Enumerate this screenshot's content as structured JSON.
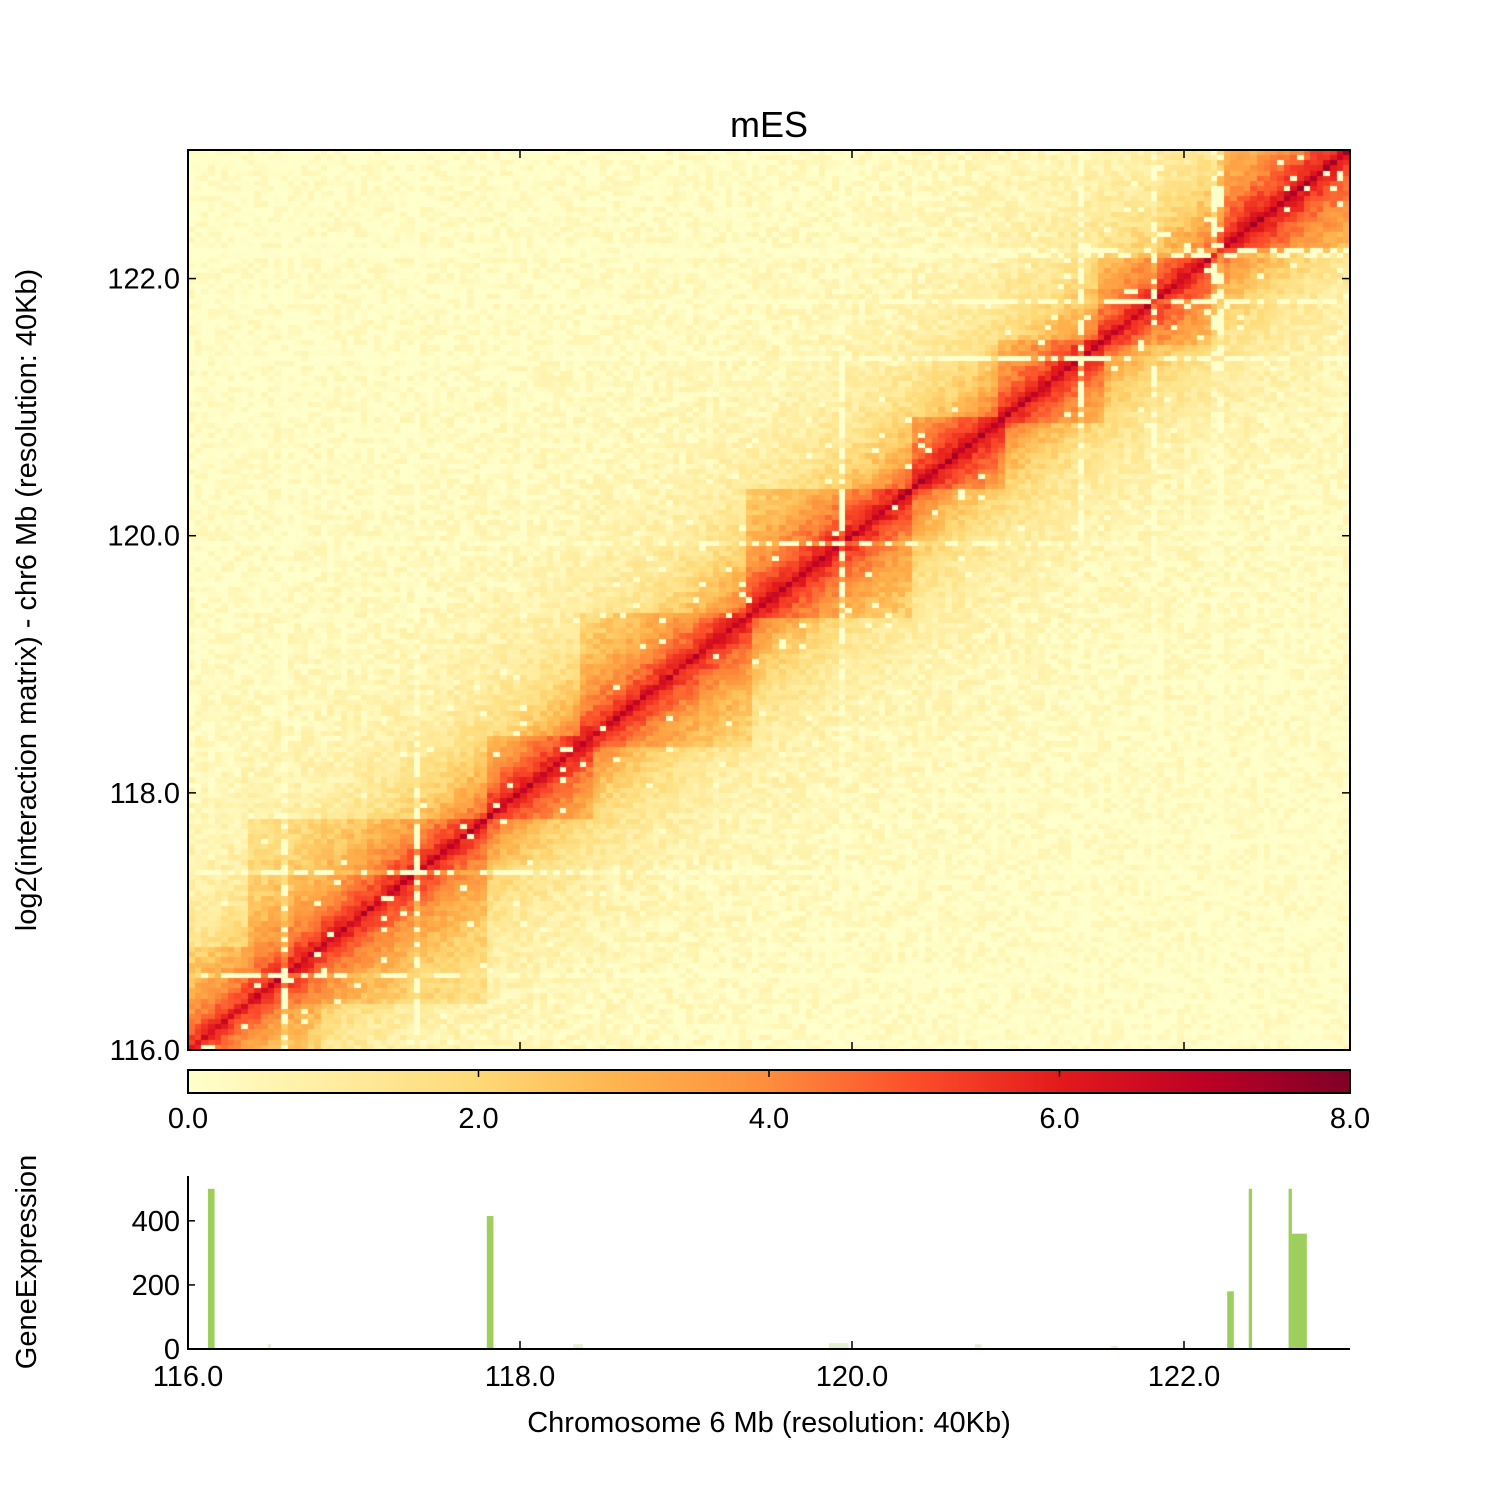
{
  "chart_data": [
    {
      "type": "heatmap",
      "title": "mES",
      "ylabel": "log2(interaction matrix) - chr6 Mb (resolution: 40Kb)",
      "xlim": [
        116.0,
        123.0
      ],
      "ylim": [
        116.0,
        123.0
      ],
      "y_ticks": [
        "116.0",
        "118.0",
        "120.0",
        "122.0"
      ],
      "resolution_kb": 40,
      "colormap": "YlOrRd",
      "colorbar": {
        "range": [
          0.0,
          8.0
        ],
        "ticks": [
          "0.0",
          "2.0",
          "4.0",
          "6.0",
          "8.0"
        ],
        "colors": [
          "#ffffcc",
          "#ffeda0",
          "#fed976",
          "#feb24c",
          "#fd8d3c",
          "#fc4e2a",
          "#e31a1c",
          "#bd0026",
          "#800026"
        ]
      },
      "domains": [
        {
          "start": 116.0,
          "end": 116.8,
          "strength": 0.35
        },
        {
          "start": 116.35,
          "end": 117.8,
          "strength": 0.55
        },
        {
          "start": 117.8,
          "end": 118.45,
          "strength": 0.6
        },
        {
          "start": 118.35,
          "end": 119.4,
          "strength": 0.55
        },
        {
          "start": 119.35,
          "end": 120.35,
          "strength": 0.65
        },
        {
          "start": 120.35,
          "end": 120.9,
          "strength": 0.7
        },
        {
          "start": 120.9,
          "end": 121.5,
          "strength": 0.6
        },
        {
          "start": 121.5,
          "end": 122.2,
          "strength": 0.55
        },
        {
          "start": 122.2,
          "end": 123.0,
          "strength": 0.75
        }
      ],
      "gap_positions": [
        122.15,
        117.35,
        116.55,
        122.2,
        121.35,
        121.8,
        119.9,
        123.0
      ]
    },
    {
      "type": "bar",
      "xlabel": "Chromosome 6 Mb (resolution: 40Kb)",
      "ylabel": "GeneExpression",
      "xlim": [
        116.0,
        123.0
      ],
      "ylim": [
        0,
        540
      ],
      "x_ticks": [
        "116.0",
        "118.0",
        "120.0",
        "122.0"
      ],
      "y_ticks": [
        "0",
        "200",
        "400"
      ],
      "color": "#8dc63f",
      "bars": [
        {
          "start": 116.12,
          "end": 116.16,
          "value": 500
        },
        {
          "start": 116.48,
          "end": 116.5,
          "value": 15
        },
        {
          "start": 117.8,
          "end": 117.84,
          "value": 415
        },
        {
          "start": 118.32,
          "end": 118.38,
          "value": 15
        },
        {
          "start": 119.86,
          "end": 119.98,
          "value": 18
        },
        {
          "start": 120.74,
          "end": 120.78,
          "value": 15
        },
        {
          "start": 121.56,
          "end": 121.6,
          "value": 10
        },
        {
          "start": 122.26,
          "end": 122.3,
          "value": 180
        },
        {
          "start": 122.39,
          "end": 122.41,
          "value": 500
        },
        {
          "start": 122.63,
          "end": 122.65,
          "value": 500
        },
        {
          "start": 122.65,
          "end": 122.74,
          "value": 360
        }
      ]
    }
  ]
}
